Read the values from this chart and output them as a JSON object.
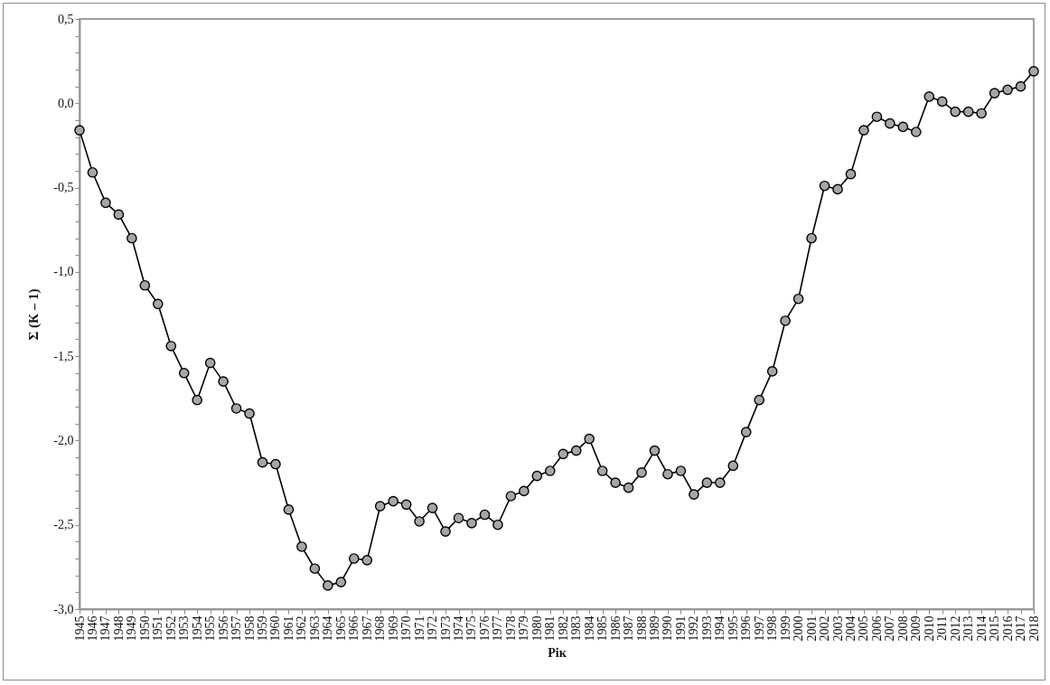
{
  "chart_data": {
    "type": "line",
    "xlabel": "Рік",
    "ylabel": "Σ (К – 1)",
    "categories": [
      "1945",
      "1946",
      "1947",
      "1948",
      "1949",
      "1950",
      "1951",
      "1952",
      "1953",
      "1954",
      "1955",
      "1956",
      "1957",
      "1958",
      "1959",
      "1960",
      "1961",
      "1962",
      "1963",
      "1964",
      "1965",
      "1966",
      "1967",
      "1968",
      "1969",
      "1970",
      "1971",
      "1972",
      "1973",
      "1974",
      "1975",
      "1976",
      "1977",
      "1978",
      "1979",
      "1980",
      "1981",
      "1982",
      "1983",
      "1984",
      "1985",
      "1986",
      "1987",
      "1988",
      "1989",
      "1990",
      "1991",
      "1992",
      "1993",
      "1994",
      "1995",
      "1996",
      "1997",
      "1998",
      "1999",
      "2000",
      "2001",
      "2002",
      "2003",
      "2004",
      "2005",
      "2006",
      "2007",
      "2008",
      "2009",
      "2010",
      "2011",
      "2012",
      "2013",
      "2014",
      "2015",
      "2016",
      "2017",
      "2018"
    ],
    "series": [
      {
        "color": "#a6a6a6",
        "values": [
          -0.16,
          -0.41,
          -0.59,
          -0.66,
          -0.8,
          -1.08,
          -1.19,
          -1.44,
          -1.6,
          -1.76,
          -1.54,
          -1.65,
          -1.81,
          -1.84,
          -2.13,
          -2.14,
          -2.41,
          -2.63,
          -2.76,
          -2.86,
          -2.84,
          -2.7,
          -2.71,
          -2.39,
          -2.36,
          -2.38,
          -2.48,
          -2.4,
          -2.54,
          -2.46,
          -2.49,
          -2.44,
          -2.5,
          -2.33,
          -2.3,
          -2.21,
          -2.18,
          -2.08,
          -2.06,
          -1.99,
          -2.18,
          -2.25,
          -2.28,
          -2.19,
          -2.06,
          -2.2,
          -2.18,
          -2.32,
          -2.25,
          -2.25,
          -2.15,
          -1.95,
          -1.76,
          -1.59,
          -1.29,
          -1.16,
          -0.8,
          -0.49,
          -0.51,
          -0.42,
          -0.16,
          -0.08,
          -0.12,
          -0.14,
          -0.17,
          0.04,
          0.01,
          -0.05,
          -0.05,
          -0.06,
          0.06,
          0.08,
          0.1,
          0.19
        ]
      }
    ],
    "ylim": [
      -3.0,
      0.5
    ],
    "yticks": [
      {
        "value": -3.0,
        "label": "-3,0"
      },
      {
        "value": -2.9,
        "label": null
      },
      {
        "value": -2.8,
        "label": null
      },
      {
        "value": -2.7,
        "label": null
      },
      {
        "value": -2.6,
        "label": null
      },
      {
        "value": -2.5,
        "label": "-2,5"
      },
      {
        "value": -2.4,
        "label": null
      },
      {
        "value": -2.3,
        "label": null
      },
      {
        "value": -2.2,
        "label": null
      },
      {
        "value": -2.1,
        "label": null
      },
      {
        "value": -2.0,
        "label": "-2,0"
      },
      {
        "value": -1.9,
        "label": null
      },
      {
        "value": -1.8,
        "label": null
      },
      {
        "value": -1.7,
        "label": null
      },
      {
        "value": -1.6,
        "label": null
      },
      {
        "value": -1.5,
        "label": "-1,5"
      },
      {
        "value": -1.4,
        "label": null
      },
      {
        "value": -1.3,
        "label": null
      },
      {
        "value": -1.2,
        "label": null
      },
      {
        "value": -1.1,
        "label": null
      },
      {
        "value": -1.0,
        "label": "-1,0"
      },
      {
        "value": -0.9,
        "label": null
      },
      {
        "value": -0.8,
        "label": null
      },
      {
        "value": -0.7,
        "label": null
      },
      {
        "value": -0.6,
        "label": null
      },
      {
        "value": -0.5,
        "label": "-0,5"
      },
      {
        "value": -0.4,
        "label": null
      },
      {
        "value": -0.3,
        "label": null
      },
      {
        "value": -0.2,
        "label": null
      },
      {
        "value": -0.1,
        "label": null
      },
      {
        "value": 0.0,
        "label": "0,0"
      },
      {
        "value": 0.1,
        "label": null
      },
      {
        "value": 0.2,
        "label": null
      },
      {
        "value": 0.3,
        "label": null
      },
      {
        "value": 0.4,
        "label": null
      },
      {
        "value": 0.5,
        "label": "0,5"
      }
    ],
    "marker": "circle",
    "line_style": "solid"
  }
}
